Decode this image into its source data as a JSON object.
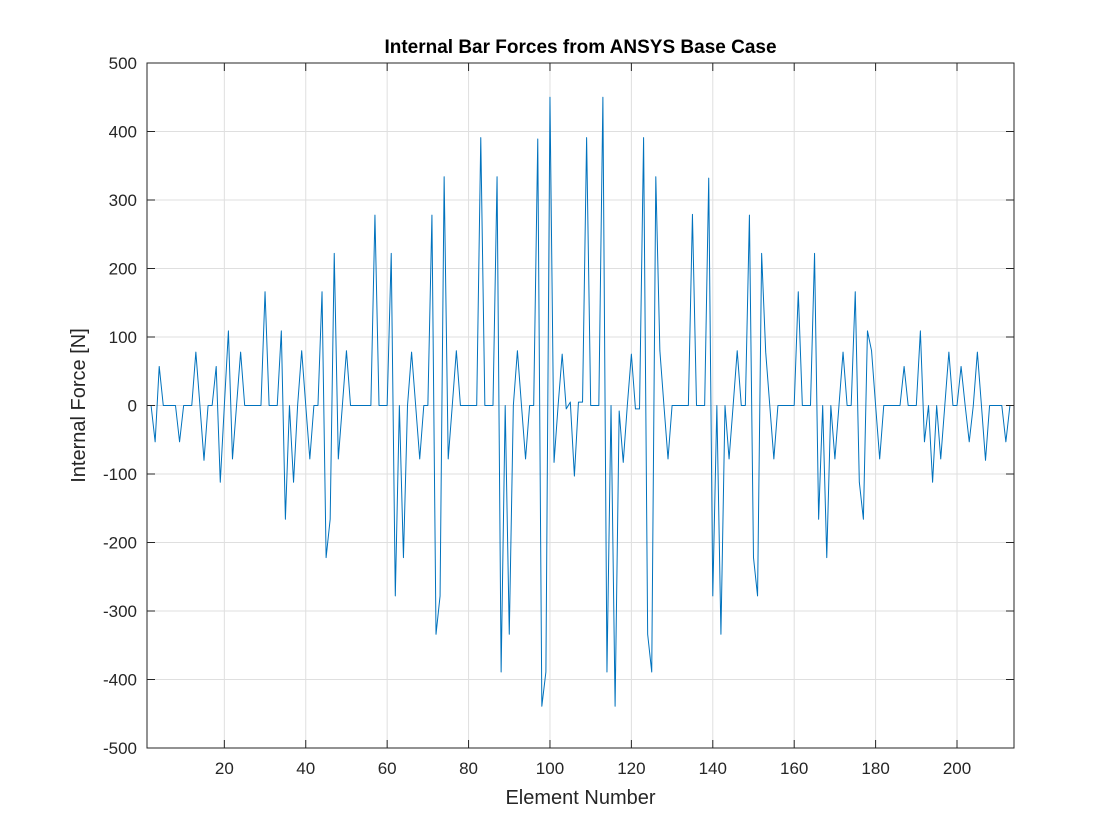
{
  "chart_data": {
    "type": "line",
    "title": "Internal Bar Forces from ANSYS Base Case",
    "xlabel": "Element Number",
    "ylabel": "Internal Force [N]",
    "xlim": [
      1,
      214
    ],
    "ylim": [
      -500,
      500
    ],
    "xticks": [
      20,
      40,
      60,
      80,
      100,
      120,
      140,
      160,
      180,
      200
    ],
    "yticks": [
      500,
      400,
      300,
      200,
      100,
      0,
      -100,
      -200,
      -300,
      -400,
      -500
    ],
    "grid": true,
    "series": [
      {
        "color": "#0072BD",
        "x": [
          1,
          2,
          3,
          4,
          5,
          6,
          7,
          8,
          9,
          10,
          11,
          12,
          13,
          14,
          15,
          16,
          17,
          18,
          19,
          20,
          21,
          22,
          23,
          24,
          25,
          26,
          27,
          28,
          29,
          30,
          31,
          32,
          33,
          34,
          35,
          36,
          37,
          38,
          39,
          40,
          41,
          42,
          43,
          44,
          45,
          46,
          47,
          48,
          49,
          50,
          51,
          52,
          53,
          54,
          55,
          56,
          57,
          58,
          59,
          60,
          61,
          62,
          63,
          64,
          65,
          66,
          67,
          68,
          69,
          70,
          71,
          72,
          73,
          74,
          75,
          76,
          77,
          78,
          79,
          80,
          81,
          82,
          83,
          84,
          85,
          86,
          87,
          88,
          89,
          90,
          91,
          92,
          93,
          94,
          95,
          96,
          97,
          98,
          99,
          100,
          101,
          102,
          103,
          104,
          105,
          106,
          107,
          108,
          109,
          110,
          111,
          112,
          113,
          114,
          115,
          116,
          117,
          118,
          119,
          120,
          121,
          122,
          123,
          124,
          125,
          126,
          127,
          128,
          129,
          130,
          131,
          132,
          133,
          134,
          135,
          136,
          137,
          138,
          139,
          140,
          141,
          142,
          143,
          144,
          145,
          146,
          147,
          148,
          149,
          150,
          151,
          152,
          153,
          154,
          155,
          156,
          157,
          158,
          159,
          160,
          161,
          162,
          163,
          164,
          165,
          166,
          167,
          168,
          169,
          170,
          171,
          172,
          173,
          174,
          175,
          176,
          177,
          178,
          179,
          180,
          181,
          182,
          183,
          184,
          185,
          186,
          187,
          188,
          189,
          190,
          191,
          192,
          193,
          194,
          195,
          196,
          197,
          198,
          199,
          200,
          201,
          202,
          203,
          204,
          205,
          206,
          207,
          208,
          209,
          210,
          211,
          212,
          213,
          214
        ],
        "y": [
          0,
          0,
          -53,
          57,
          0,
          0,
          0,
          0,
          -53,
          0,
          0,
          0,
          78,
          0,
          -80,
          0,
          0,
          57,
          -112,
          0,
          109,
          -78,
          0,
          78,
          0,
          0,
          0,
          0,
          0,
          166,
          0,
          0,
          0,
          109,
          -166,
          0,
          -112,
          0,
          80,
          0,
          -78,
          0,
          0,
          166,
          -222,
          -166,
          222,
          -78,
          0,
          80,
          0,
          0,
          0,
          0,
          0,
          0,
          278,
          0,
          0,
          0,
          222,
          -278,
          0,
          -222,
          0,
          78,
          0,
          -78,
          0,
          0,
          278,
          -334,
          -278,
          334,
          -78,
          0,
          80,
          0,
          0,
          0,
          0,
          0,
          391,
          0,
          0,
          0,
          334,
          -389,
          0,
          -334,
          0,
          80,
          0,
          -78,
          0,
          0,
          389,
          -439,
          -389,
          450,
          -83,
          0,
          75,
          -5,
          5,
          -103,
          5,
          5,
          391,
          0,
          0,
          0,
          450,
          -389,
          0,
          -439,
          -8,
          -83,
          0,
          75,
          -5,
          -5,
          391,
          -334,
          -389,
          334,
          80,
          0,
          -78,
          0,
          0,
          0,
          0,
          0,
          279,
          0,
          0,
          0,
          332,
          -278,
          0,
          -334,
          0,
          -78,
          0,
          80,
          0,
          0,
          278,
          -222,
          -278,
          222,
          78,
          0,
          -78,
          0,
          0,
          0,
          0,
          0,
          166,
          0,
          0,
          0,
          222,
          -166,
          0,
          -222,
          0,
          -78,
          0,
          78,
          0,
          0,
          166,
          -112,
          -166,
          109,
          80,
          0,
          -78,
          0,
          0,
          0,
          0,
          0,
          57,
          0,
          0,
          0,
          109,
          -53,
          0,
          -112,
          0,
          -78,
          0,
          78,
          0,
          0,
          57,
          0,
          -53,
          0,
          78,
          0,
          -80,
          0,
          0,
          0,
          0,
          -53,
          0,
          0
        ]
      }
    ]
  }
}
